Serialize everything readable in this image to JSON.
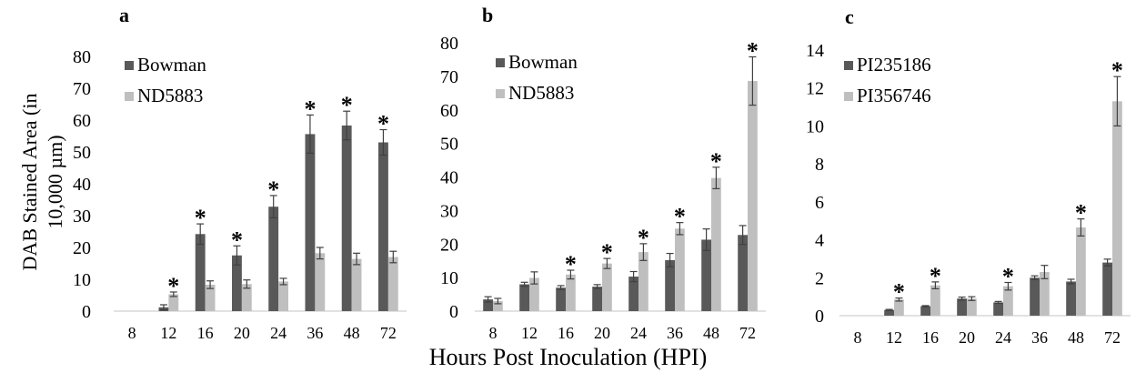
{
  "figure": {
    "shared_ylabel_line1": "DAB Stained Area (in",
    "shared_ylabel_line2": "10,000 µm)",
    "shared_xlabel": "Hours Post Inoculation (HPI)"
  },
  "colors": {
    "dark": "#595959",
    "light": "#bfbfbf",
    "error": "#404040",
    "axis": "#d9d9d9"
  },
  "chart_data": [
    {
      "type": "bar",
      "panel_label": "a",
      "categories": [
        "8",
        "12",
        "16",
        "20",
        "24",
        "36",
        "48",
        "72"
      ],
      "ylim": [
        0,
        80
      ],
      "yticks": [
        0,
        10,
        20,
        30,
        40,
        50,
        60,
        70,
        80
      ],
      "legend_position": "top-left",
      "series": [
        {
          "name": "Bowman",
          "color": "#595959",
          "values": [
            0,
            1.2,
            24.2,
            17.5,
            32.8,
            55.6,
            58.3,
            53.0
          ],
          "errors": [
            0,
            0.8,
            3.2,
            3.0,
            3.5,
            6.0,
            4.5,
            4.0
          ],
          "sig": [
            false,
            false,
            true,
            true,
            true,
            true,
            true,
            true
          ]
        },
        {
          "name": "ND5883",
          "color": "#bfbfbf",
          "values": [
            0,
            5.3,
            8.3,
            8.5,
            9.3,
            18.2,
            16.4,
            17.0
          ],
          "errors": [
            0,
            0.7,
            1.2,
            1.3,
            1.0,
            1.8,
            1.8,
            1.8
          ],
          "sig": [
            false,
            true,
            false,
            false,
            false,
            false,
            false,
            false
          ]
        }
      ],
      "sig_marker": "*"
    },
    {
      "type": "bar",
      "panel_label": "b",
      "categories": [
        "8",
        "12",
        "16",
        "20",
        "24",
        "36",
        "48",
        "72"
      ],
      "ylim": [
        0,
        80
      ],
      "yticks": [
        0,
        10,
        20,
        30,
        40,
        50,
        60,
        70,
        80
      ],
      "legend_position": "top-left",
      "series": [
        {
          "name": "Bowman",
          "color": "#595959",
          "values": [
            3.5,
            8.0,
            7.0,
            7.3,
            10.3,
            15.2,
            21.3,
            22.7
          ],
          "errors": [
            0.8,
            0.6,
            0.6,
            0.6,
            1.5,
            2.0,
            3.2,
            2.8
          ],
          "sig": [
            false,
            false,
            false,
            false,
            false,
            false,
            false,
            false
          ]
        },
        {
          "name": "ND5883",
          "color": "#bfbfbf",
          "values": [
            3.0,
            9.9,
            10.9,
            14.2,
            17.6,
            24.6,
            39.7,
            68.6
          ],
          "errors": [
            0.8,
            1.8,
            1.3,
            1.5,
            2.5,
            1.8,
            3.2,
            7.2
          ],
          "sig": [
            false,
            false,
            true,
            true,
            true,
            true,
            true,
            true
          ]
        }
      ],
      "sig_marker": "*"
    },
    {
      "type": "bar",
      "panel_label": "c",
      "categories": [
        "8",
        "12",
        "16",
        "20",
        "24",
        "36",
        "48",
        "72"
      ],
      "ylim": [
        0,
        14
      ],
      "yticks": [
        0,
        2,
        4,
        6,
        8,
        10,
        12,
        14
      ],
      "legend_position": "top-left",
      "series": [
        {
          "name": "PI235186",
          "color": "#595959",
          "values": [
            0,
            0.3,
            0.5,
            0.9,
            0.7,
            2.0,
            1.8,
            2.8
          ],
          "errors": [
            0,
            0.03,
            0.03,
            0.08,
            0.05,
            0.1,
            0.12,
            0.18
          ],
          "sig": [
            false,
            false,
            false,
            false,
            false,
            false,
            false,
            false
          ]
        },
        {
          "name": "PI356746",
          "color": "#bfbfbf",
          "values": [
            0,
            0.85,
            1.6,
            0.9,
            1.55,
            2.3,
            4.65,
            11.3
          ],
          "errors": [
            0,
            0.08,
            0.18,
            0.1,
            0.2,
            0.35,
            0.45,
            1.3
          ],
          "sig": [
            false,
            true,
            true,
            false,
            true,
            false,
            true,
            true
          ]
        }
      ],
      "sig_marker": "*"
    }
  ]
}
